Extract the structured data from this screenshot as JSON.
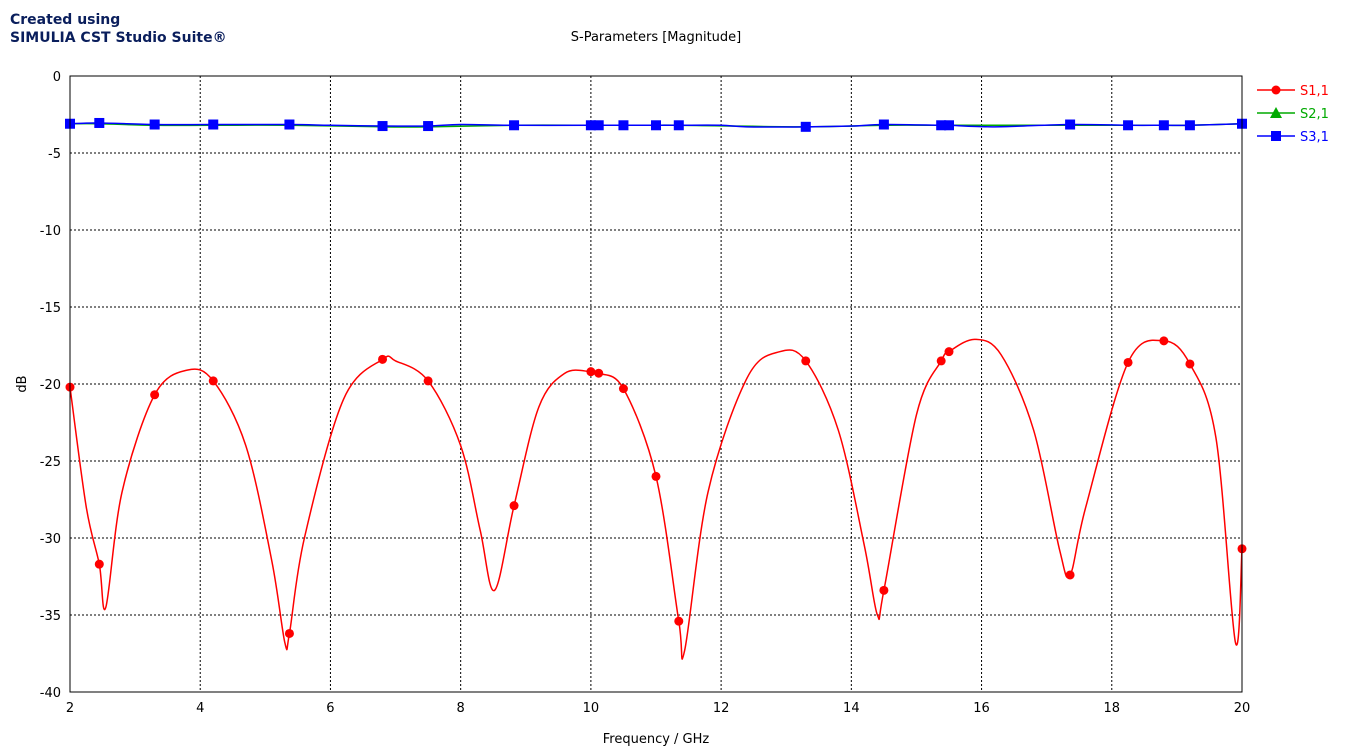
{
  "branding": {
    "line1": "Created using",
    "line2": "SIMULIA CST Studio Suite®"
  },
  "colors": {
    "s11": "#ff0000",
    "s21": "#00aa00",
    "s31": "#0000ff",
    "grid": "#000000",
    "text_blue": "#0a1e5c"
  },
  "chart_data": {
    "type": "line",
    "title": "S-Parameters [Magnitude]",
    "xlabel": "Frequency / GHz",
    "ylabel": "dB",
    "xlim": [
      2,
      20
    ],
    "ylim": [
      -40,
      0
    ],
    "xticks": [
      2,
      4,
      6,
      8,
      10,
      12,
      14,
      16,
      18,
      20
    ],
    "yticks": [
      0,
      -5,
      -10,
      -15,
      -20,
      -25,
      -30,
      -35,
      -40
    ],
    "grid": true,
    "legend_position": "right",
    "series": [
      {
        "name": "S1,1",
        "marker": "circle",
        "x": [
          2.0,
          2.25,
          2.45,
          2.55,
          2.8,
          3.3,
          3.8,
          4.2,
          4.7,
          5.1,
          5.3,
          5.37,
          5.6,
          6.2,
          6.8,
          7.0,
          7.5,
          8.0,
          8.3,
          8.52,
          8.82,
          9.2,
          9.6,
          10.0,
          10.12,
          10.5,
          11.0,
          11.35,
          11.44,
          11.8,
          12.4,
          12.9,
          13.3,
          13.8,
          14.2,
          14.4,
          14.5,
          15.0,
          15.38,
          15.5,
          15.9,
          16.3,
          16.8,
          17.2,
          17.36,
          17.6,
          18.25,
          18.8,
          19.2,
          19.6,
          19.9,
          20.0
        ],
        "y": [
          -20.2,
          -28.0,
          -31.7,
          -34.5,
          -27.0,
          -20.7,
          -19.1,
          -19.8,
          -24.0,
          -31.5,
          -36.8,
          -36.2,
          -30.0,
          -21.0,
          -18.4,
          -18.5,
          -19.8,
          -24.0,
          -29.5,
          -33.4,
          -27.9,
          -21.5,
          -19.3,
          -19.2,
          -19.3,
          -20.3,
          -26.0,
          -35.4,
          -37.3,
          -27.0,
          -19.6,
          -17.9,
          -18.5,
          -23.0,
          -30.5,
          -35.0,
          -33.4,
          -22.0,
          -18.5,
          -17.9,
          -17.1,
          -18.1,
          -23.0,
          -30.8,
          -32.4,
          -28.0,
          -18.6,
          -17.2,
          -18.7,
          -23.5,
          -36.8,
          -30.7
        ],
        "markers_x": [
          2.0,
          2.45,
          3.3,
          4.2,
          5.37,
          6.8,
          7.5,
          8.82,
          10.0,
          10.12,
          10.5,
          11.0,
          11.35,
          13.3,
          14.5,
          15.38,
          15.5,
          17.36,
          18.25,
          18.8,
          19.2,
          20.0
        ],
        "markers_y": [
          -20.2,
          -31.7,
          -20.7,
          -19.8,
          -36.2,
          -18.4,
          -19.8,
          -27.9,
          -19.2,
          -19.3,
          -20.3,
          -26.0,
          -35.4,
          -18.5,
          -33.4,
          -18.5,
          -17.9,
          -32.4,
          -18.6,
          -17.2,
          -18.7,
          -30.7
        ]
      },
      {
        "name": "S2,1",
        "marker": "triangle",
        "x": [
          2.0,
          2.45,
          3.3,
          4.2,
          5.37,
          6.8,
          7.5,
          8.82,
          10.0,
          10.12,
          10.5,
          11.0,
          11.35,
          13.3,
          14.5,
          15.38,
          15.5,
          17.36,
          18.25,
          18.8,
          19.2,
          20.0
        ],
        "y": [
          -3.1,
          -3.1,
          -3.2,
          -3.2,
          -3.2,
          -3.3,
          -3.3,
          -3.2,
          -3.2,
          -3.2,
          -3.2,
          -3.2,
          -3.2,
          -3.3,
          -3.2,
          -3.2,
          -3.2,
          -3.2,
          -3.2,
          -3.2,
          -3.2,
          -3.1
        ],
        "markers_x": [],
        "markers_y": []
      },
      {
        "name": "S3,1",
        "marker": "square",
        "x": [
          2.0,
          2.45,
          3.3,
          4.2,
          5.37,
          6.0,
          6.8,
          7.5,
          8.0,
          8.82,
          10.0,
          10.12,
          10.5,
          11.0,
          11.35,
          12.0,
          12.4,
          13.3,
          14.0,
          14.5,
          15.38,
          15.5,
          16.2,
          17.36,
          18.25,
          18.8,
          19.2,
          20.0
        ],
        "y": [
          -3.1,
          -3.05,
          -3.15,
          -3.15,
          -3.15,
          -3.2,
          -3.25,
          -3.25,
          -3.15,
          -3.2,
          -3.2,
          -3.2,
          -3.2,
          -3.2,
          -3.2,
          -3.2,
          -3.3,
          -3.3,
          -3.25,
          -3.15,
          -3.2,
          -3.2,
          -3.3,
          -3.15,
          -3.2,
          -3.2,
          -3.2,
          -3.1
        ],
        "markers_x": [
          2.0,
          2.45,
          3.3,
          4.2,
          5.37,
          6.8,
          7.5,
          8.82,
          10.0,
          10.12,
          10.5,
          11.0,
          11.35,
          13.3,
          14.5,
          15.38,
          15.5,
          17.36,
          18.25,
          18.8,
          19.2,
          20.0
        ],
        "markers_y": [
          -3.1,
          -3.05,
          -3.15,
          -3.15,
          -3.15,
          -3.25,
          -3.25,
          -3.2,
          -3.2,
          -3.2,
          -3.2,
          -3.2,
          -3.2,
          -3.3,
          -3.15,
          -3.2,
          -3.2,
          -3.15,
          -3.2,
          -3.2,
          -3.2,
          -3.1
        ]
      }
    ]
  }
}
